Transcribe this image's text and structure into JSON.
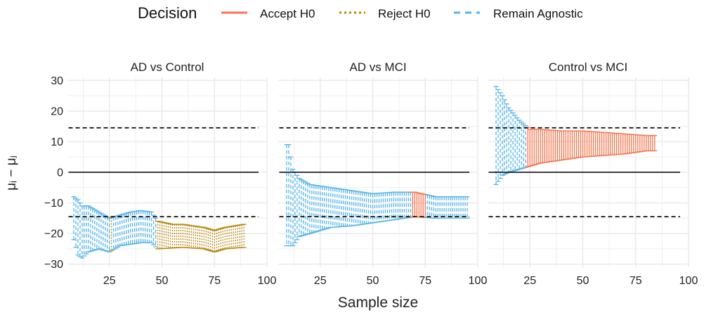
{
  "figure": {
    "xlabel": "Sample size",
    "ylabel": "μᵢ − μⱼ",
    "x_ticks": [
      25,
      50,
      75,
      100
    ],
    "y_ticks": [
      30,
      20,
      10,
      0,
      -10,
      -20,
      -30
    ],
    "x_tick_labels": [
      "25",
      "50",
      "75",
      "100"
    ],
    "y_tick_labels": [
      "30",
      "20",
      "10",
      "0",
      "−10",
      "−20",
      "−30"
    ]
  },
  "legend": {
    "title": "Decision",
    "items": [
      {
        "label": "Accept H0",
        "color": "#F4764F",
        "dash": "solid"
      },
      {
        "label": "Reject H0",
        "color": "#B8860B",
        "dash": "dotted"
      },
      {
        "label": "Remain Agnostic",
        "color": "#56B4E9",
        "dash": "dashed"
      }
    ]
  },
  "colors": {
    "accept": "#F4764F",
    "reject": "#B8860B",
    "agnostic": "#56B4E9",
    "grid": "#ebebeb",
    "reference": "#000000"
  },
  "chart_data": [
    {
      "type": "errorbar",
      "title": "AD vs Control",
      "xlim": [
        5,
        100
      ],
      "ylim": [
        -31,
        31
      ],
      "hlines": [
        {
          "y": 0,
          "style": "solid"
        },
        {
          "y": 14.5,
          "style": "dashed"
        },
        {
          "y": -14.5,
          "style": "dashed"
        }
      ],
      "x_range": [
        8,
        89
      ],
      "lower_anchors": [
        [
          8,
          -22
        ],
        [
          10,
          -27
        ],
        [
          12,
          -28
        ],
        [
          15,
          -26
        ],
        [
          20,
          -25
        ],
        [
          25,
          -26
        ],
        [
          30,
          -24
        ],
        [
          40,
          -23
        ],
        [
          45,
          -23
        ],
        [
          48,
          -25
        ],
        [
          60,
          -24.5
        ],
        [
          70,
          -25
        ],
        [
          75,
          -26
        ],
        [
          80,
          -25
        ],
        [
          89,
          -24.5
        ]
      ],
      "upper_anchors": [
        [
          8,
          -8
        ],
        [
          10,
          -9
        ],
        [
          12,
          -11
        ],
        [
          15,
          -11
        ],
        [
          20,
          -13
        ],
        [
          25,
          -15
        ],
        [
          30,
          -14
        ],
        [
          35,
          -13
        ],
        [
          40,
          -12.5
        ],
        [
          45,
          -13
        ],
        [
          48,
          -16
        ],
        [
          55,
          -17
        ],
        [
          60,
          -17
        ],
        [
          70,
          -18
        ],
        [
          75,
          -19
        ],
        [
          80,
          -18
        ],
        [
          89,
          -17
        ]
      ],
      "segments": [
        {
          "from": 8,
          "to": 25,
          "decision": "agnostic"
        },
        {
          "from": 26,
          "to": 26,
          "decision": "reject"
        },
        {
          "from": 27,
          "to": 47,
          "decision": "agnostic"
        },
        {
          "from": 48,
          "to": 89,
          "decision": "reject"
        }
      ]
    },
    {
      "type": "errorbar",
      "title": "AD vs MCI",
      "xlim": [
        5,
        100
      ],
      "ylim": [
        -31,
        31
      ],
      "hlines": [
        {
          "y": 0,
          "style": "solid"
        },
        {
          "y": 14.5,
          "style": "dashed"
        },
        {
          "y": -14.5,
          "style": "dashed"
        }
      ],
      "x_range": [
        9,
        95
      ],
      "lower_anchors": [
        [
          9,
          -24
        ],
        [
          12,
          -24
        ],
        [
          15,
          -21
        ],
        [
          20,
          -20
        ],
        [
          30,
          -18
        ],
        [
          40,
          -17.5
        ],
        [
          50,
          -16.5
        ],
        [
          60,
          -15.5
        ],
        [
          70,
          -14.5
        ],
        [
          80,
          -15
        ],
        [
          95,
          -15
        ]
      ],
      "upper_anchors": [
        [
          9,
          9
        ],
        [
          10,
          9
        ],
        [
          12,
          1
        ],
        [
          15,
          -2
        ],
        [
          20,
          -4
        ],
        [
          30,
          -5
        ],
        [
          40,
          -6
        ],
        [
          50,
          -7
        ],
        [
          60,
          -6.5
        ],
        [
          70,
          -6.5
        ],
        [
          80,
          -8
        ],
        [
          95,
          -8
        ]
      ],
      "segments": [
        {
          "from": 9,
          "to": 68,
          "decision": "agnostic"
        },
        {
          "from": 69,
          "to": 75,
          "decision": "accept"
        },
        {
          "from": 76,
          "to": 95,
          "decision": "agnostic"
        }
      ]
    },
    {
      "type": "errorbar",
      "title": "Control vs MCI",
      "xlim": [
        5,
        100
      ],
      "ylim": [
        -31,
        31
      ],
      "hlines": [
        {
          "y": 0,
          "style": "solid"
        },
        {
          "y": 14.5,
          "style": "dashed"
        },
        {
          "y": -14.5,
          "style": "dashed"
        }
      ],
      "x_range": [
        9,
        84
      ],
      "lower_anchors": [
        [
          9,
          -4
        ],
        [
          12,
          -1
        ],
        [
          15,
          0
        ],
        [
          20,
          1
        ],
        [
          25,
          2
        ],
        [
          30,
          3
        ],
        [
          40,
          4
        ],
        [
          50,
          5
        ],
        [
          60,
          5.5
        ],
        [
          70,
          6
        ],
        [
          80,
          7
        ],
        [
          84,
          7
        ]
      ],
      "upper_anchors": [
        [
          9,
          28
        ],
        [
          12,
          25
        ],
        [
          15,
          21
        ],
        [
          20,
          17
        ],
        [
          25,
          14
        ],
        [
          30,
          14
        ],
        [
          40,
          13.5
        ],
        [
          50,
          13.5
        ],
        [
          60,
          13
        ],
        [
          70,
          12.5
        ],
        [
          80,
          12
        ],
        [
          84,
          12
        ]
      ],
      "segments": [
        {
          "from": 9,
          "to": 23,
          "decision": "agnostic"
        },
        {
          "from": 24,
          "to": 84,
          "decision": "accept"
        }
      ]
    }
  ]
}
